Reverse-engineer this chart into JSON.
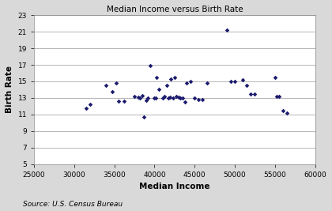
{
  "title": "Median Income versus Birth Rate",
  "xlabel": "Median Income",
  "ylabel": "Birth Rate",
  "source_text": "Source: U.S. Census Bureau",
  "source_italic_end": "Source:",
  "xlim": [
    25000,
    60000
  ],
  "ylim": [
    5,
    23
  ],
  "xticks": [
    25000,
    30000,
    35000,
    40000,
    45000,
    50000,
    55000,
    60000
  ],
  "yticks": [
    5,
    7,
    9,
    11,
    13,
    15,
    17,
    19,
    21,
    23
  ],
  "marker_color": "#1a1a6e",
  "figure_bg": "#d9d9d9",
  "plot_bg": "#ffffff",
  "grid_color": "#aaaaaa",
  "scatter_x": [
    31500,
    32000,
    34000,
    34700,
    35200,
    35500,
    36200,
    37500,
    38000,
    38200,
    38500,
    38700,
    39000,
    39200,
    39500,
    40000,
    40200,
    40300,
    40500,
    41000,
    41200,
    41500,
    41700,
    41900,
    42000,
    42300,
    42500,
    42700,
    43000,
    43200,
    43500,
    43800,
    44000,
    44500,
    45000,
    45500,
    46000,
    46500,
    49000,
    49500,
    50000,
    51000,
    51500,
    52000,
    52500,
    55000,
    55200,
    55500,
    56000,
    56500
  ],
  "scatter_y": [
    11.8,
    12.2,
    14.5,
    13.8,
    14.8,
    12.6,
    12.6,
    13.2,
    13.1,
    13.0,
    13.3,
    10.7,
    12.7,
    13.0,
    16.9,
    13.0,
    13.0,
    15.5,
    14.0,
    13.0,
    13.2,
    14.5,
    13.0,
    13.1,
    15.3,
    13.0,
    15.5,
    13.2,
    13.1,
    13.0,
    13.0,
    12.5,
    14.8,
    15.0,
    13.0,
    12.8,
    12.8,
    14.8,
    21.2,
    15.0,
    15.0,
    15.2,
    14.5,
    13.5,
    13.5,
    15.5,
    13.2,
    13.2,
    11.5,
    11.2
  ]
}
